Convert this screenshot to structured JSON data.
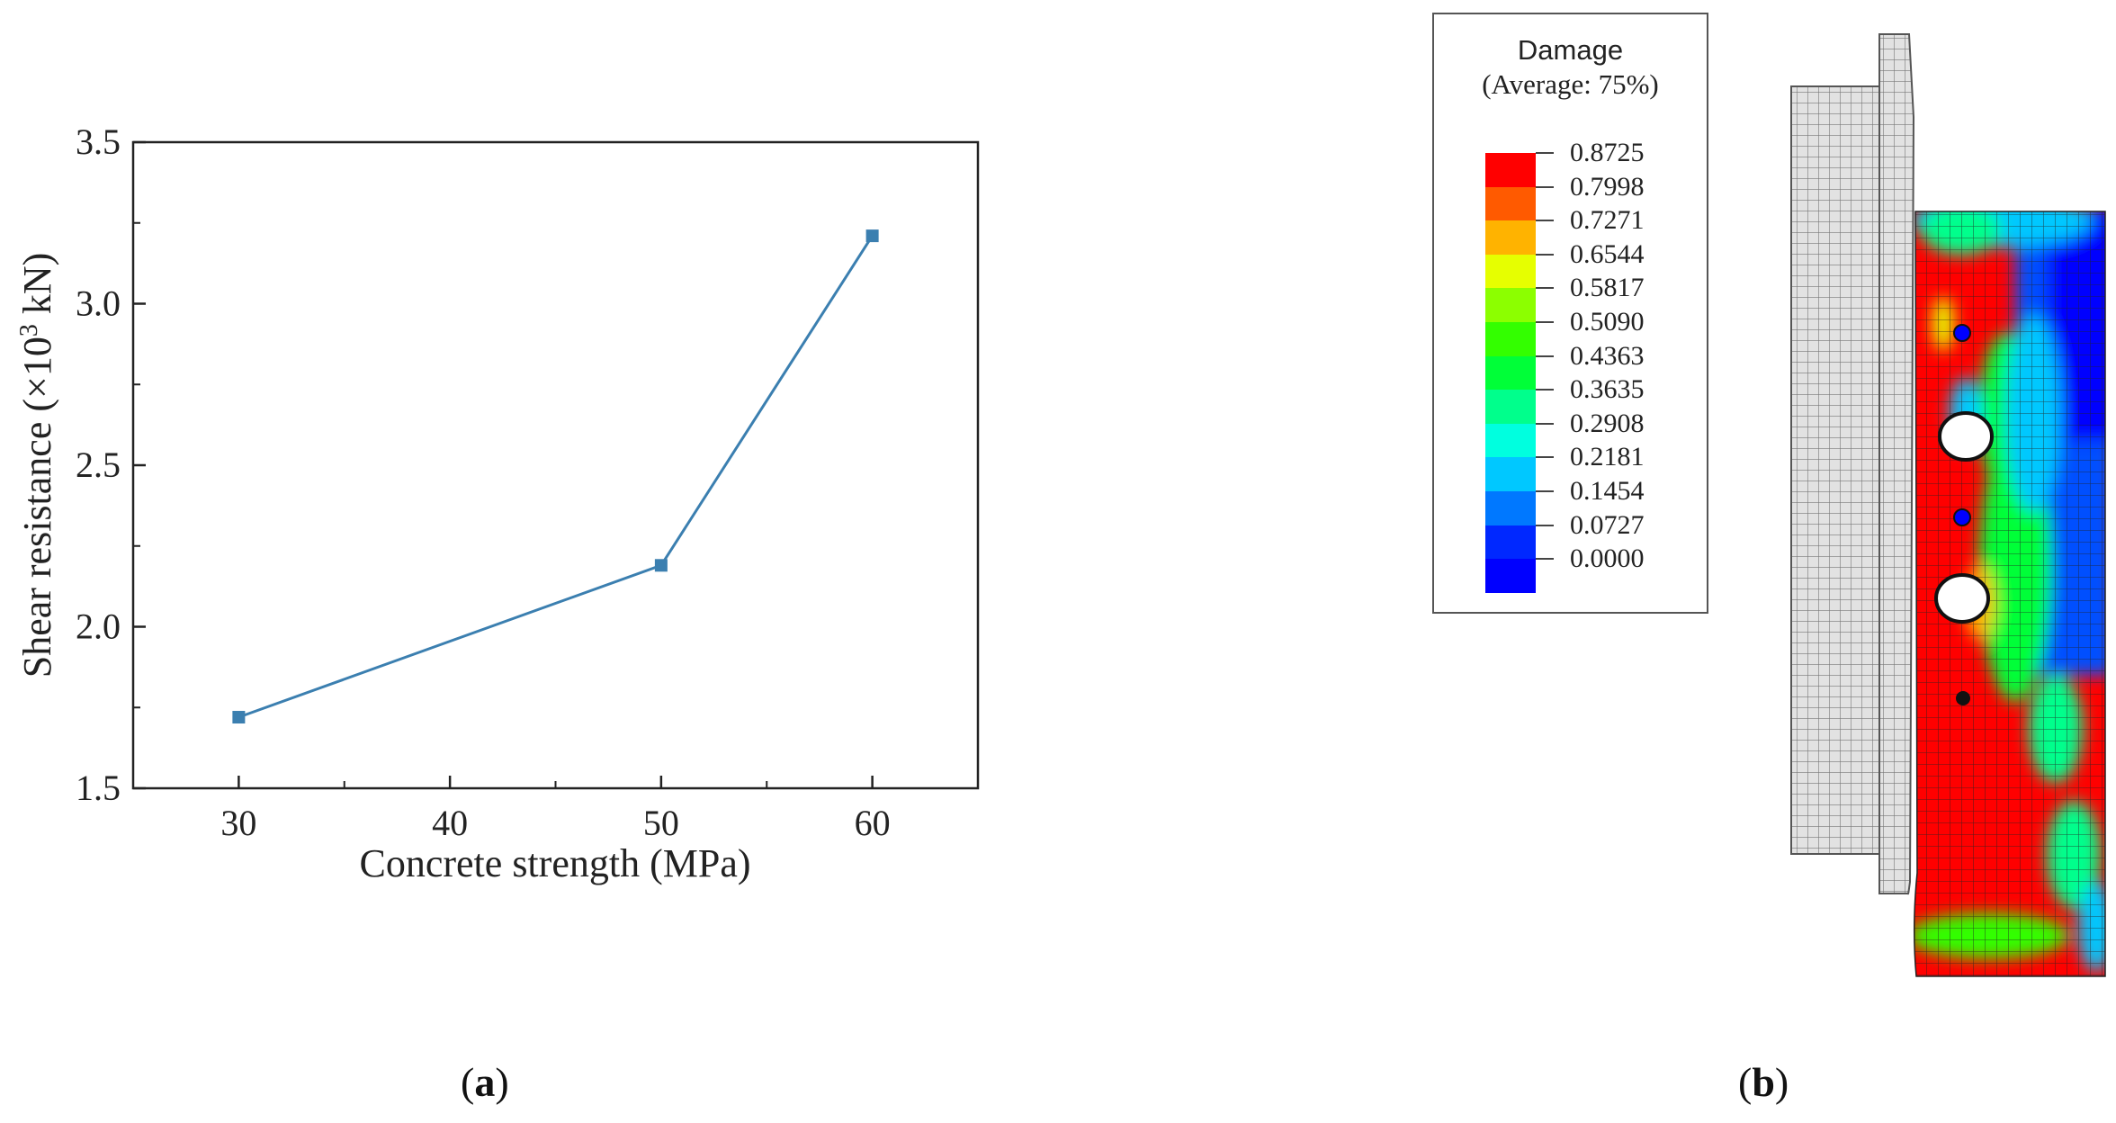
{
  "chart_data": {
    "type": "line",
    "x": [
      30,
      50,
      60
    ],
    "values": [
      1.72,
      2.19,
      3.21
    ],
    "xlabel": "Concrete strength (MPa)",
    "ylabel_main": "Shear resistance (×10",
    "ylabel_sup": "3",
    "ylabel_end": " kN)",
    "xlim": [
      25,
      65
    ],
    "ylim": [
      1.5,
      3.5
    ],
    "xticks": [
      "30",
      "40",
      "50",
      "60"
    ],
    "yticks": [
      "1.5",
      "2.0",
      "2.5",
      "3.0",
      "3.5"
    ],
    "line_color": "#3b7fb0",
    "panel_label": "a"
  },
  "legend": {
    "title": "Damage",
    "subtitle": "(Average: 75%)",
    "values": [
      "0.8725",
      "0.7998",
      "0.7271",
      "0.6544",
      "0.5817",
      "0.5090",
      "0.4363",
      "0.3635",
      "0.2908",
      "0.2181",
      "0.1454",
      "0.0727",
      "0.0000"
    ],
    "colors": [
      "#ff0000",
      "#ff5a00",
      "#ffb300",
      "#e6ff00",
      "#8cff00",
      "#33ff00",
      "#00ff38",
      "#00ff8c",
      "#00ffdf",
      "#00c8ff",
      "#0078ff",
      "#0028ff",
      "#0000ff"
    ]
  },
  "figure_b": {
    "panel_label": "b"
  }
}
